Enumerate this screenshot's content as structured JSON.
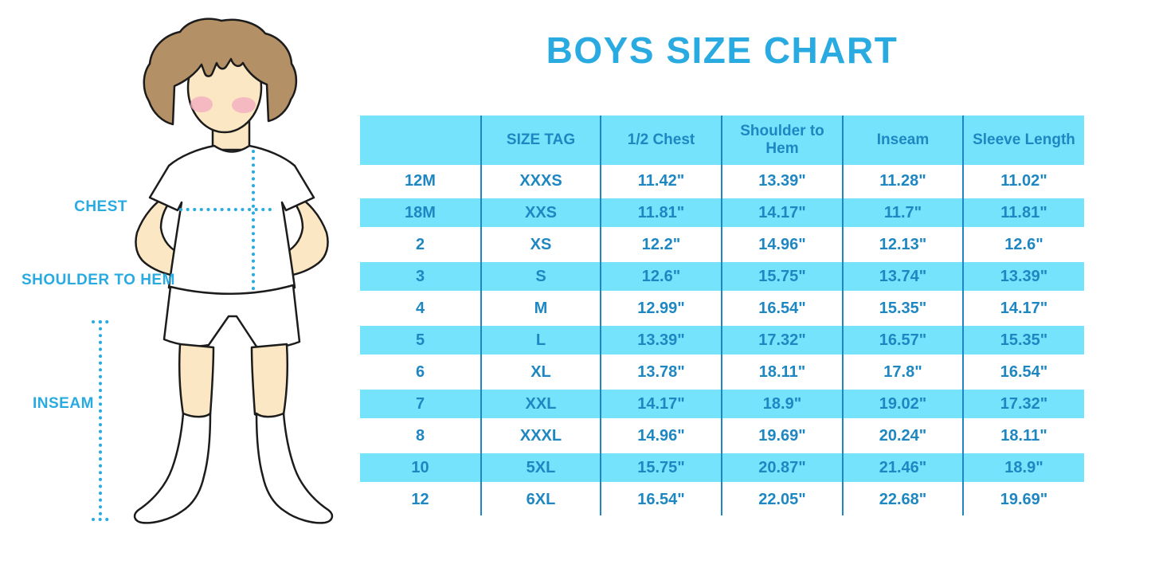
{
  "title": "BOYS SIZE CHART",
  "colors": {
    "accent_blue": "#29ABE2",
    "band_blue": "#76E3FC",
    "table_text_blue": "#1E87C2",
    "skin": "#FBE7C3",
    "hair": "#B39066",
    "cheek": "#F3AEC0"
  },
  "figure": {
    "labels": {
      "chest": "CHEST",
      "shoulder_to_hem": "SHOULDER TO HEM",
      "inseam": "INSEAM"
    }
  },
  "chart_data": {
    "type": "table",
    "title": "BOYS SIZE CHART",
    "columns": [
      "",
      "SIZE TAG",
      "1/2 Chest",
      "Shoulder to Hem",
      "Inseam",
      "Sleeve Length"
    ],
    "rows": [
      [
        "12M",
        "XXXS",
        "11.42\"",
        "13.39\"",
        "11.28\"",
        "11.02\""
      ],
      [
        "18M",
        "XXS",
        "11.81\"",
        "14.17\"",
        "11.7\"",
        "11.81\""
      ],
      [
        "2",
        "XS",
        "12.2\"",
        "14.96\"",
        "12.13\"",
        "12.6\""
      ],
      [
        "3",
        "S",
        "12.6\"",
        "15.75\"",
        "13.74\"",
        "13.39\""
      ],
      [
        "4",
        "M",
        "12.99\"",
        "16.54\"",
        "15.35\"",
        "14.17\""
      ],
      [
        "5",
        "L",
        "13.39\"",
        "17.32\"",
        "16.57\"",
        "15.35\""
      ],
      [
        "6",
        "XL",
        "13.78\"",
        "18.11\"",
        "17.8\"",
        "16.54\""
      ],
      [
        "7",
        "XXL",
        "14.17\"",
        "18.9\"",
        "19.02\"",
        "17.32\""
      ],
      [
        "8",
        "XXXL",
        "14.96\"",
        "19.69\"",
        "20.24\"",
        "18.11\""
      ],
      [
        "10",
        "5XL",
        "15.75\"",
        "20.87\"",
        "21.46\"",
        "18.9\""
      ],
      [
        "12",
        "6XL",
        "16.54\"",
        "22.05\"",
        "22.68\"",
        "19.69\""
      ]
    ]
  }
}
